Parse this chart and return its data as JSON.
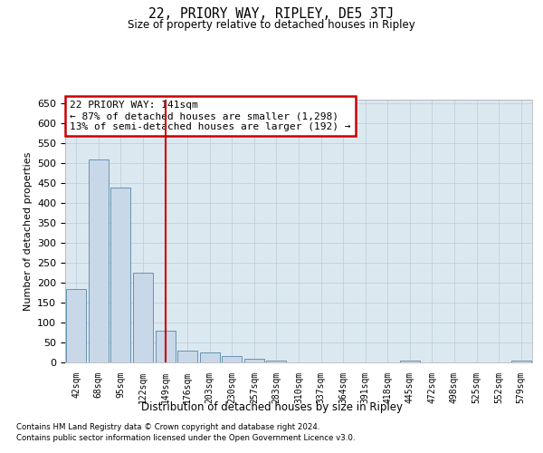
{
  "title": "22, PRIORY WAY, RIPLEY, DE5 3TJ",
  "subtitle": "Size of property relative to detached houses in Ripley",
  "xlabel": "Distribution of detached houses by size in Ripley",
  "ylabel": "Number of detached properties",
  "categories": [
    "42sqm",
    "68sqm",
    "95sqm",
    "122sqm",
    "149sqm",
    "176sqm",
    "203sqm",
    "230sqm",
    "257sqm",
    "283sqm",
    "310sqm",
    "337sqm",
    "364sqm",
    "391sqm",
    "418sqm",
    "445sqm",
    "472sqm",
    "498sqm",
    "525sqm",
    "552sqm",
    "579sqm"
  ],
  "values": [
    185,
    510,
    440,
    225,
    80,
    30,
    25,
    15,
    10,
    5,
    0,
    0,
    0,
    0,
    0,
    5,
    0,
    0,
    0,
    0,
    5
  ],
  "bar_color": "#c8d8e8",
  "bar_edge_color": "#5588aa",
  "bar_edge_width": 0.6,
  "vline_x": 4.0,
  "vline_color": "#cc0000",
  "annotation_text": "22 PRIORY WAY: 141sqm\n← 87% of detached houses are smaller (1,298)\n13% of semi-detached houses are larger (192) →",
  "annotation_box_color": "#ffffff",
  "annotation_box_edge": "#cc0000",
  "ylim": [
    0,
    660
  ],
  "yticks": [
    0,
    50,
    100,
    150,
    200,
    250,
    300,
    350,
    400,
    450,
    500,
    550,
    600,
    650
  ],
  "ax_bg_color": "#dce8f0",
  "background_color": "#ffffff",
  "grid_color": "#b8ccd8",
  "footer_line1": "Contains HM Land Registry data © Crown copyright and database right 2024.",
  "footer_line2": "Contains public sector information licensed under the Open Government Licence v3.0."
}
